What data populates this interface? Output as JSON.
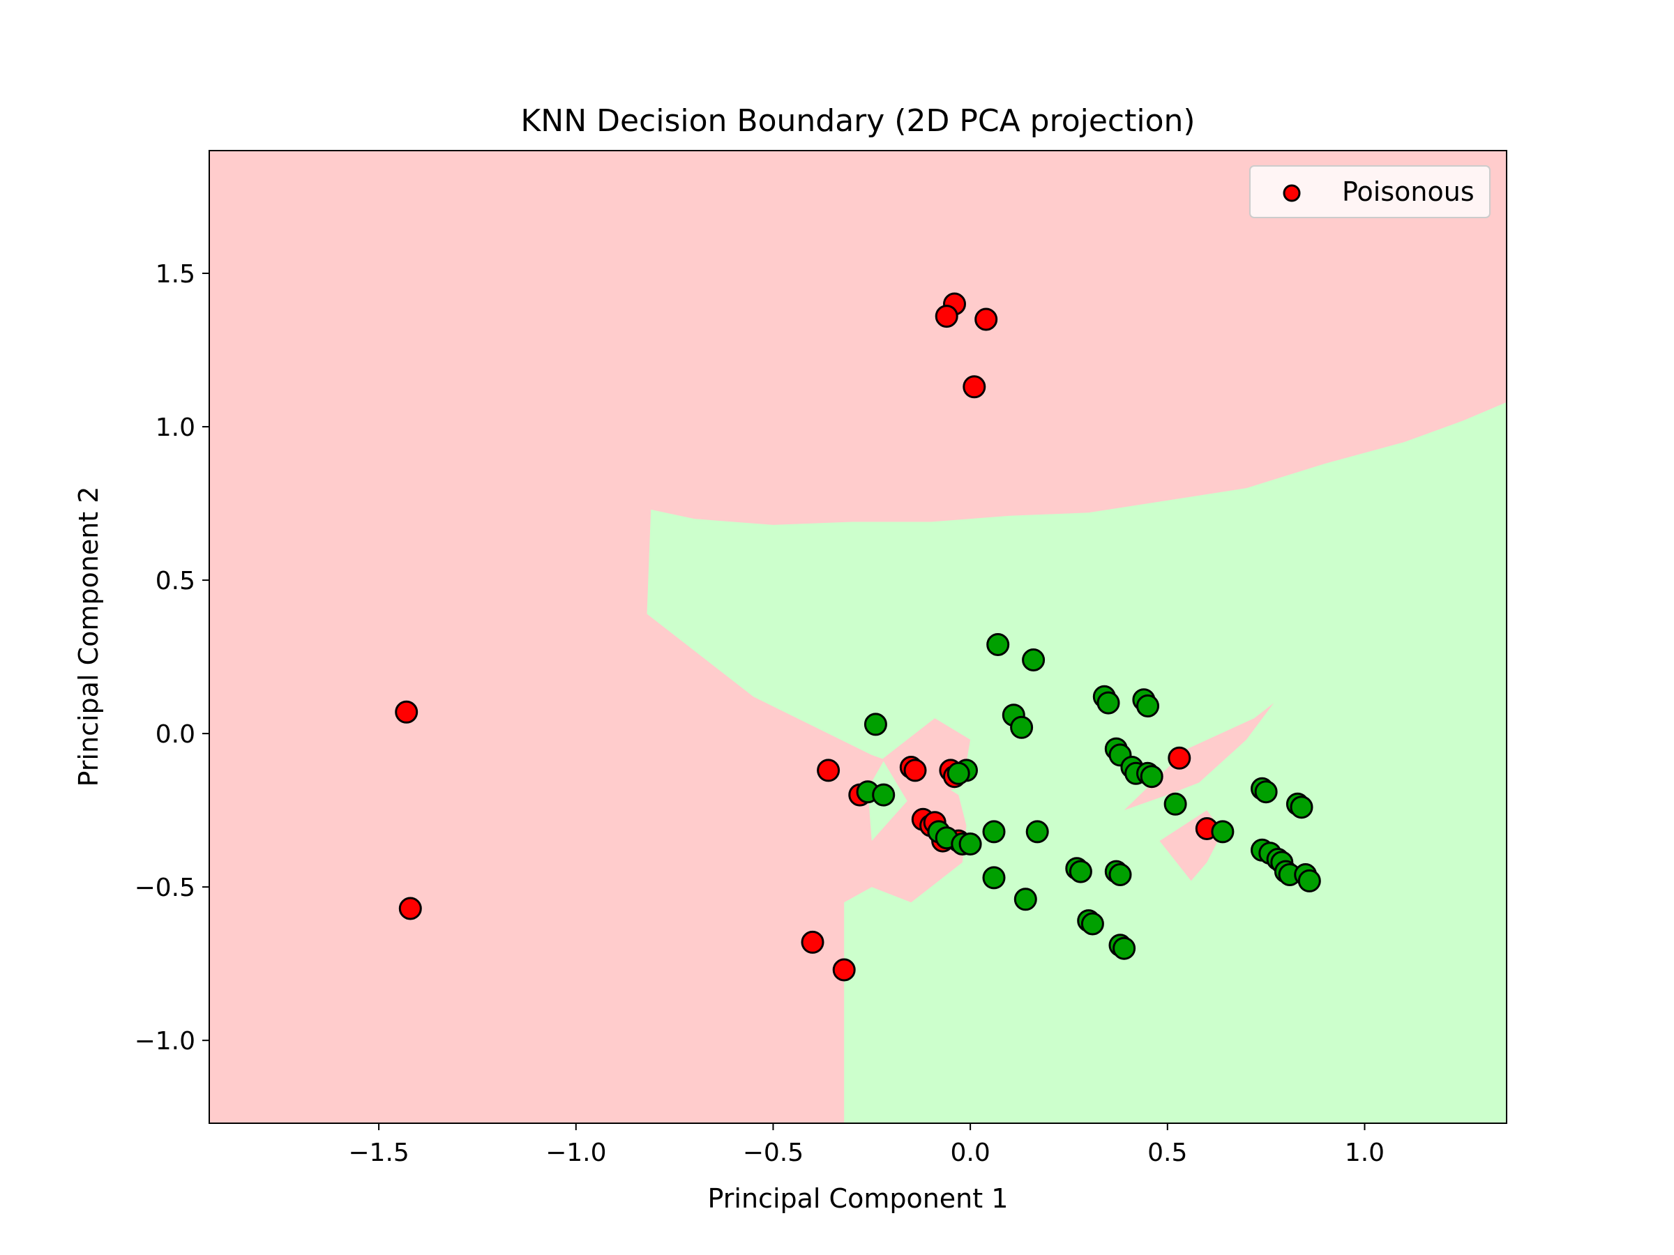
{
  "chart_data": {
    "type": "scatter",
    "title": "KNN Decision Boundary (2D PCA projection)",
    "xlabel": "Principal Component 1",
    "ylabel": "Principal Component 2",
    "xlim": [
      -1.93,
      1.36
    ],
    "ylim": [
      -1.27,
      1.9
    ],
    "xticks": [
      -1.5,
      -1.0,
      -0.5,
      0.0,
      0.5,
      1.0
    ],
    "xtick_labels": [
      "−1.5",
      "−1.0",
      "−0.5",
      "0.0",
      "0.5",
      "1.0"
    ],
    "yticks": [
      -1.0,
      -0.5,
      0.0,
      0.5,
      1.0,
      1.5
    ],
    "ytick_labels": [
      "−1.0",
      "−0.5",
      "0.0",
      "0.5",
      "1.0",
      "1.5"
    ],
    "grid": false,
    "legend": {
      "placement": "top-right",
      "entries": [
        {
          "label": "Poisonous",
          "color": "#ff0000"
        }
      ]
    },
    "colors": {
      "poisonous_region": "#ffcccc",
      "edible_region": "#ccffcc",
      "poisonous_point": "#ff0000",
      "edible_point": "#00a000",
      "point_edge": "#000000"
    },
    "regions": [
      {
        "class": "edible",
        "polygon": [
          [
            -0.32,
            -1.27
          ],
          [
            -0.32,
            -0.55
          ],
          [
            -0.25,
            -0.5
          ],
          [
            -0.15,
            -0.55
          ],
          [
            -0.08,
            -0.48
          ],
          [
            -0.02,
            -0.42
          ],
          [
            -0.01,
            -0.3
          ],
          [
            -0.03,
            -0.2
          ],
          [
            -0.08,
            -0.16
          ],
          [
            -0.14,
            -0.12
          ],
          [
            -0.25,
            -0.07
          ],
          [
            -0.55,
            0.12
          ],
          [
            -0.82,
            0.39
          ],
          [
            -0.81,
            0.73
          ],
          [
            -0.7,
            0.7
          ],
          [
            -0.5,
            0.68
          ],
          [
            -0.3,
            0.69
          ],
          [
            -0.1,
            0.69
          ],
          [
            0.1,
            0.71
          ],
          [
            0.3,
            0.72
          ],
          [
            0.5,
            0.76
          ],
          [
            0.7,
            0.8
          ],
          [
            0.9,
            0.88
          ],
          [
            1.1,
            0.95
          ],
          [
            1.25,
            1.02
          ],
          [
            1.36,
            1.08
          ],
          [
            1.36,
            -1.27
          ]
        ]
      },
      {
        "class": "poisonous",
        "polygon": [
          [
            -0.24,
            -0.1
          ],
          [
            -0.09,
            0.05
          ],
          [
            0.0,
            -0.02
          ],
          [
            -0.02,
            -0.17
          ],
          [
            -0.12,
            -0.22
          ]
        ]
      },
      {
        "class": "edible",
        "polygon": [
          [
            -0.25,
            -0.35
          ],
          [
            -0.26,
            -0.18
          ],
          [
            -0.22,
            -0.09
          ],
          [
            -0.16,
            -0.22
          ]
        ]
      },
      {
        "class": "poisonous",
        "polygon": [
          [
            0.39,
            -0.25
          ],
          [
            0.55,
            -0.05
          ],
          [
            0.72,
            0.05
          ],
          [
            0.77,
            0.1
          ],
          [
            0.7,
            -0.02
          ],
          [
            0.58,
            -0.16
          ],
          [
            0.5,
            -0.2
          ]
        ]
      },
      {
        "class": "poisonous",
        "polygon": [
          [
            0.48,
            -0.35
          ],
          [
            0.6,
            -0.25
          ],
          [
            0.64,
            -0.32
          ],
          [
            0.6,
            -0.42
          ],
          [
            0.56,
            -0.48
          ]
        ]
      }
    ],
    "series": [
      {
        "name": "Poisonous",
        "class": "poisonous",
        "points": [
          [
            -0.04,
            1.4
          ],
          [
            -0.06,
            1.36
          ],
          [
            0.04,
            1.35
          ],
          [
            0.01,
            1.13
          ],
          [
            -1.43,
            0.07
          ],
          [
            -1.42,
            -0.57
          ],
          [
            -0.36,
            -0.12
          ],
          [
            -0.28,
            -0.2
          ],
          [
            -0.15,
            -0.11
          ],
          [
            -0.14,
            -0.12
          ],
          [
            -0.05,
            -0.12
          ],
          [
            -0.04,
            -0.14
          ],
          [
            -0.12,
            -0.28
          ],
          [
            -0.1,
            -0.3
          ],
          [
            -0.09,
            -0.29
          ],
          [
            -0.07,
            -0.35
          ],
          [
            -0.03,
            -0.35
          ],
          [
            0.53,
            -0.08
          ],
          [
            0.6,
            -0.31
          ],
          [
            -0.4,
            -0.68
          ],
          [
            -0.32,
            -0.77
          ]
        ]
      },
      {
        "class": "edible",
        "points": [
          [
            0.07,
            0.29
          ],
          [
            0.16,
            0.24
          ],
          [
            -0.24,
            0.03
          ],
          [
            0.11,
            0.06
          ],
          [
            0.13,
            0.02
          ],
          [
            0.34,
            0.12
          ],
          [
            0.35,
            0.1
          ],
          [
            0.44,
            0.11
          ],
          [
            0.45,
            0.09
          ],
          [
            0.37,
            -0.05
          ],
          [
            0.38,
            -0.07
          ],
          [
            0.41,
            -0.11
          ],
          [
            0.42,
            -0.13
          ],
          [
            0.45,
            -0.13
          ],
          [
            0.46,
            -0.14
          ],
          [
            0.52,
            -0.23
          ],
          [
            -0.26,
            -0.19
          ],
          [
            -0.22,
            -0.2
          ],
          [
            -0.01,
            -0.12
          ],
          [
            -0.03,
            -0.13
          ],
          [
            -0.08,
            -0.32
          ],
          [
            -0.06,
            -0.34
          ],
          [
            -0.02,
            -0.36
          ],
          [
            0.0,
            -0.36
          ],
          [
            0.06,
            -0.32
          ],
          [
            0.17,
            -0.32
          ],
          [
            0.06,
            -0.47
          ],
          [
            0.14,
            -0.54
          ],
          [
            0.27,
            -0.44
          ],
          [
            0.28,
            -0.45
          ],
          [
            0.37,
            -0.45
          ],
          [
            0.38,
            -0.46
          ],
          [
            0.3,
            -0.61
          ],
          [
            0.31,
            -0.62
          ],
          [
            0.38,
            -0.69
          ],
          [
            0.39,
            -0.7
          ],
          [
            0.64,
            -0.32
          ],
          [
            0.74,
            -0.18
          ],
          [
            0.75,
            -0.19
          ],
          [
            0.74,
            -0.38
          ],
          [
            0.76,
            -0.39
          ],
          [
            0.78,
            -0.41
          ],
          [
            0.79,
            -0.42
          ],
          [
            0.8,
            -0.45
          ],
          [
            0.81,
            -0.46
          ],
          [
            0.83,
            -0.23
          ],
          [
            0.84,
            -0.24
          ],
          [
            0.85,
            -0.46
          ],
          [
            0.86,
            -0.48
          ]
        ]
      }
    ]
  }
}
